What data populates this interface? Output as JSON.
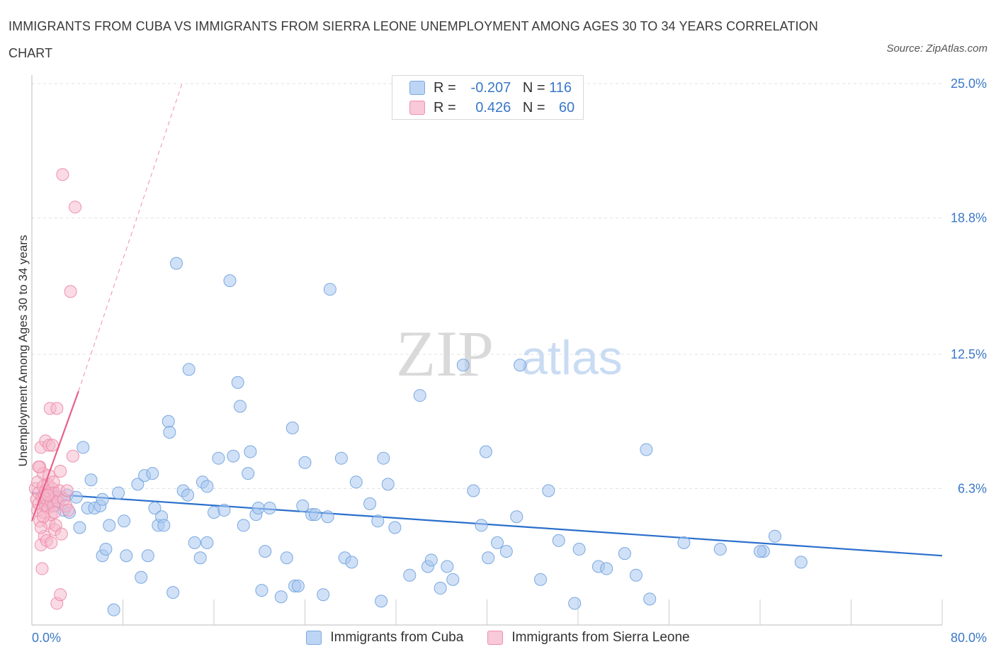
{
  "title": "IMMIGRANTS FROM CUBA VS IMMIGRANTS FROM SIERRA LEONE UNEMPLOYMENT AMONG AGES 30 TO 34 YEARS CORRELATION CHART",
  "source": "Source: ZipAtlas.com",
  "watermark": {
    "zip": "ZIP",
    "atlas": "atlas"
  },
  "legend": {
    "r_label": "R =",
    "n_label": "N =",
    "rows": [
      {
        "r": "-0.207",
        "n": "116"
      },
      {
        "r": "0.426",
        "n": "60"
      }
    ]
  },
  "colors": {
    "cuba_fill": "#a9c8f0",
    "cuba_stroke": "#7aa8e0",
    "cuba_line": "#2a6fcc",
    "sl_fill": "#f5b8cb",
    "sl_stroke": "#ee8fac",
    "sl_line": "#e8608a",
    "grid": "#e2e2e2",
    "tick_text": "#3a78c8"
  },
  "chart_data": {
    "type": "scatter",
    "xlabel": "",
    "ylabel": "Unemployment Among Ages 30 to 34 years",
    "xlim": [
      0,
      80
    ],
    "ylim": [
      0,
      25
    ],
    "x_tick_labels": [
      "0.0%",
      "80.0%"
    ],
    "y_ticks": [
      6.3,
      12.5,
      18.8,
      25.0
    ],
    "y_tick_labels": [
      "6.3%",
      "12.5%",
      "18.8%",
      "25.0%"
    ],
    "grid": "horizontal dashed",
    "legend_position": "top-center and bottom",
    "series": [
      {
        "name": "Immigrants from Cuba",
        "trend": {
          "x": [
            0,
            80
          ],
          "y": [
            6.1,
            3.2
          ]
        },
        "points": [
          [
            1.0,
            6.0
          ],
          [
            1.2,
            5.8
          ],
          [
            1.5,
            5.6
          ],
          [
            1.8,
            6.1
          ],
          [
            2.0,
            5.5
          ],
          [
            2.2,
            5.7
          ],
          [
            2.6,
            5.9
          ],
          [
            2.8,
            5.3
          ],
          [
            3.1,
            6.0
          ],
          [
            3.3,
            5.2
          ],
          [
            3.9,
            5.9
          ],
          [
            4.2,
            4.5
          ],
          [
            4.5,
            8.2
          ],
          [
            5.2,
            6.7
          ],
          [
            4.9,
            5.4
          ],
          [
            5.5,
            5.4
          ],
          [
            6.0,
            5.5
          ],
          [
            6.2,
            5.8
          ],
          [
            6.2,
            3.2
          ],
          [
            6.5,
            3.5
          ],
          [
            6.8,
            4.6
          ],
          [
            7.2,
            0.7
          ],
          [
            7.6,
            6.1
          ],
          [
            8.1,
            4.8
          ],
          [
            8.3,
            3.2
          ],
          [
            9.3,
            6.5
          ],
          [
            9.6,
            2.2
          ],
          [
            9.9,
            6.9
          ],
          [
            10.2,
            3.2
          ],
          [
            10.6,
            7.0
          ],
          [
            10.8,
            5.4
          ],
          [
            11.1,
            4.6
          ],
          [
            11.4,
            5.0
          ],
          [
            12.0,
            9.4
          ],
          [
            12.1,
            8.9
          ],
          [
            12.4,
            1.5
          ],
          [
            12.7,
            16.7
          ],
          [
            13.3,
            6.2
          ],
          [
            13.7,
            6.0
          ],
          [
            13.8,
            11.8
          ],
          [
            14.3,
            3.8
          ],
          [
            14.8,
            3.1
          ],
          [
            15.0,
            6.6
          ],
          [
            15.4,
            6.4
          ],
          [
            15.4,
            3.8
          ],
          [
            16.0,
            5.2
          ],
          [
            16.4,
            7.7
          ],
          [
            16.9,
            5.3
          ],
          [
            17.4,
            15.9
          ],
          [
            17.7,
            7.8
          ],
          [
            18.1,
            11.2
          ],
          [
            18.3,
            10.1
          ],
          [
            18.6,
            4.6
          ],
          [
            19.0,
            7.0
          ],
          [
            19.2,
            8.0
          ],
          [
            19.7,
            5.1
          ],
          [
            19.9,
            5.4
          ],
          [
            20.2,
            1.6
          ],
          [
            20.5,
            3.4
          ],
          [
            20.9,
            5.4
          ],
          [
            21.9,
            1.3
          ],
          [
            22.4,
            3.1
          ],
          [
            22.9,
            9.1
          ],
          [
            23.1,
            1.8
          ],
          [
            23.4,
            1.8
          ],
          [
            23.8,
            5.5
          ],
          [
            24.0,
            7.5
          ],
          [
            24.6,
            5.1
          ],
          [
            25.6,
            1.4
          ],
          [
            26.2,
            15.5
          ],
          [
            27.2,
            7.7
          ],
          [
            27.5,
            3.1
          ],
          [
            28.1,
            2.9
          ],
          [
            28.5,
            6.6
          ],
          [
            29.7,
            5.6
          ],
          [
            30.4,
            4.8
          ],
          [
            30.7,
            1.1
          ],
          [
            30.9,
            7.7
          ],
          [
            31.3,
            6.5
          ],
          [
            31.9,
            4.5
          ],
          [
            33.2,
            2.3
          ],
          [
            34.1,
            10.6
          ],
          [
            34.8,
            2.7
          ],
          [
            35.1,
            3.0
          ],
          [
            35.9,
            1.7
          ],
          [
            36.5,
            2.7
          ],
          [
            37.0,
            2.1
          ],
          [
            37.9,
            12.0
          ],
          [
            38.8,
            6.2
          ],
          [
            39.5,
            4.6
          ],
          [
            39.9,
            8.0
          ],
          [
            40.1,
            3.1
          ],
          [
            40.9,
            3.8
          ],
          [
            41.7,
            3.4
          ],
          [
            42.6,
            5.0
          ],
          [
            42.9,
            12.0
          ],
          [
            44.7,
            2.1
          ],
          [
            45.4,
            6.2
          ],
          [
            46.3,
            3.9
          ],
          [
            47.7,
            1.0
          ],
          [
            48.1,
            3.5
          ],
          [
            49.8,
            2.7
          ],
          [
            50.5,
            2.6
          ],
          [
            52.1,
            3.3
          ],
          [
            53.1,
            2.3
          ],
          [
            54.0,
            8.1
          ],
          [
            54.3,
            1.2
          ],
          [
            57.3,
            3.8
          ],
          [
            60.5,
            3.5
          ],
          [
            64.3,
            3.4
          ],
          [
            65.3,
            4.1
          ],
          [
            67.6,
            2.9
          ],
          [
            64.0,
            3.4
          ],
          [
            24.9,
            5.1
          ],
          [
            11.6,
            4.6
          ],
          [
            26.0,
            5.0
          ]
        ]
      },
      {
        "name": "Immigrants from Sierra Leone",
        "trend": {
          "x": [
            0,
            4.1
          ],
          "y": [
            4.8,
            10.8
          ]
        },
        "trend_extended": {
          "x": [
            4.1,
            13.2
          ],
          "y": [
            10.8,
            25.0
          ]
        },
        "points": [
          [
            0.3,
            6.3
          ],
          [
            0.4,
            5.8
          ],
          [
            0.5,
            5.3
          ],
          [
            0.5,
            6.6
          ],
          [
            0.6,
            5.6
          ],
          [
            0.6,
            6.1
          ],
          [
            0.7,
            4.8
          ],
          [
            0.7,
            7.3
          ],
          [
            0.8,
            3.7
          ],
          [
            0.8,
            8.2
          ],
          [
            0.9,
            5.9
          ],
          [
            0.9,
            2.6
          ],
          [
            1.0,
            6.4
          ],
          [
            1.0,
            5.2
          ],
          [
            1.0,
            7.0
          ],
          [
            1.1,
            6.0
          ],
          [
            1.1,
            4.1
          ],
          [
            1.2,
            5.5
          ],
          [
            1.2,
            8.5
          ],
          [
            1.2,
            6.2
          ],
          [
            1.3,
            5.8
          ],
          [
            1.3,
            3.9
          ],
          [
            1.4,
            6.5
          ],
          [
            1.4,
            5.4
          ],
          [
            1.5,
            6.9
          ],
          [
            1.5,
            8.3
          ],
          [
            1.5,
            4.7
          ],
          [
            1.6,
            10.0
          ],
          [
            1.6,
            6.1
          ],
          [
            1.7,
            5.7
          ],
          [
            1.7,
            5.1
          ],
          [
            1.7,
            3.8
          ],
          [
            1.8,
            6.3
          ],
          [
            1.8,
            8.3
          ],
          [
            1.9,
            5.5
          ],
          [
            2.0,
            4.4
          ],
          [
            2.0,
            6.1
          ],
          [
            2.1,
            4.6
          ],
          [
            2.1,
            5.9
          ],
          [
            2.2,
            1.0
          ],
          [
            2.2,
            10.0
          ],
          [
            2.3,
            5.7
          ],
          [
            2.4,
            6.2
          ],
          [
            2.5,
            1.4
          ],
          [
            2.5,
            7.1
          ],
          [
            2.6,
            4.2
          ],
          [
            2.7,
            20.8
          ],
          [
            2.8,
            5.8
          ],
          [
            3.0,
            5.5
          ],
          [
            3.1,
            6.2
          ],
          [
            3.2,
            5.3
          ],
          [
            3.4,
            15.4
          ],
          [
            3.6,
            7.8
          ],
          [
            3.8,
            19.3
          ],
          [
            1.0,
            5.0
          ],
          [
            0.6,
            7.3
          ],
          [
            1.4,
            6.0
          ],
          [
            2.0,
            5.2
          ],
          [
            0.8,
            4.5
          ],
          [
            1.9,
            6.6
          ]
        ]
      }
    ]
  },
  "bottom_legend": [
    "Immigrants from Cuba",
    "Immigrants from Sierra Leone"
  ]
}
